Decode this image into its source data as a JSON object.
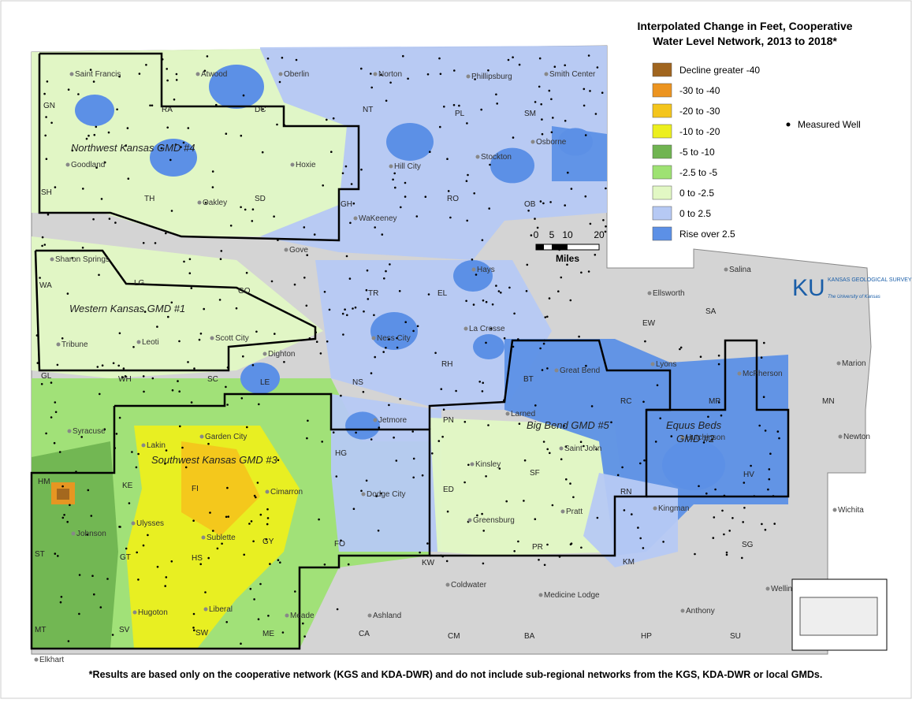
{
  "title": [
    "Interpolated Change in Feet, Cooperative",
    "Water Level Network, 2013 to 2018*"
  ],
  "legend": [
    {
      "label": "Decline greater -40",
      "color": "#a0651f"
    },
    {
      "label": "-30 to -40",
      "color": "#ec9420"
    },
    {
      "label": "-20 to -30",
      "color": "#f4c51c"
    },
    {
      "label": "-10 to -20",
      "color": "#ecef1e"
    },
    {
      "label": "-5 to -10",
      "color": "#70b451"
    },
    {
      "label": "-2.5 to -5",
      "color": "#9ee273"
    },
    {
      "label": "0 to -2.5",
      "color": "#e2f8c4"
    },
    {
      "label": "0 to 2.5",
      "color": "#b6c9f4"
    },
    {
      "label": "Rise over 2.5",
      "color": "#5c90e6"
    }
  ],
  "well_label": "Measured Well",
  "scale": {
    "ticks": [
      "0",
      "5",
      "10",
      "20"
    ],
    "unit": "Miles"
  },
  "logo": {
    "mark": "KU",
    "name": "KANSAS GEOLOGICAL SURVEY",
    "sub": "The University of Kansas"
  },
  "footnote": "*Results are based only on the cooperative network (KGS and KDA-DWR) and do not include sub-regional networks from the KGS, KDA-DWR or local GMDs.",
  "cities": [
    "Saint Francis",
    "Atwood",
    "Oberlin",
    "Norton",
    "Phillipsburg",
    "Smith Center",
    "Goodland",
    "Hoxie",
    "Hill City",
    "Stockton",
    "Osborne",
    "Oakley",
    "WaKeeney",
    "Gove",
    "Hays",
    "Sharon Springs",
    "Salina",
    "Ellsworth",
    "La Crosse",
    "Ness City",
    "Tribune",
    "Leoti",
    "Scott City",
    "Dighton",
    "Great Bend",
    "Lyons",
    "McPherson",
    "Marion",
    "Larned",
    "Jetmore",
    "Syracuse",
    "Lakin",
    "Garden City",
    "Hutchinson",
    "Newton",
    "Saint John",
    "Kinsley",
    "Cimarron",
    "Dodge City",
    "Ulysses",
    "Johnson",
    "Sublette",
    "Greensburg",
    "Pratt",
    "Kingman",
    "Wichita",
    "Meade",
    "Hugoton",
    "Liberal",
    "Elkhart",
    "Ashland",
    "Coldwater",
    "Medicine Lodge",
    "Anthony",
    "Wellington"
  ],
  "counties": [
    "GN",
    "RA",
    "DC",
    "NT",
    "PL",
    "SM",
    "SH",
    "TH",
    "SD",
    "GH",
    "RO",
    "OB",
    "WA",
    "LG",
    "GO",
    "TR",
    "EL",
    "EW",
    "SA",
    "GL",
    "WH",
    "SC",
    "LE",
    "NS",
    "RH",
    "BT",
    "RC",
    "MP",
    "MN",
    "PN",
    "HG",
    "ED",
    "SF",
    "RN",
    "HV",
    "HM",
    "KE",
    "FI",
    "GY",
    "ST",
    "GT",
    "HS",
    "FO",
    "KW",
    "PR",
    "KM",
    "SG",
    "MT",
    "SV",
    "SW",
    "ME",
    "CA",
    "CM",
    "BA",
    "HP",
    "SU"
  ],
  "gmd_labels": [
    "Northwest Kansas GMD #4",
    "Western Kansas GMD #1",
    "Southwest Kansas GMD #3",
    "Big Bend GMD #5",
    "Equus Beds",
    "GMD #2"
  ]
}
